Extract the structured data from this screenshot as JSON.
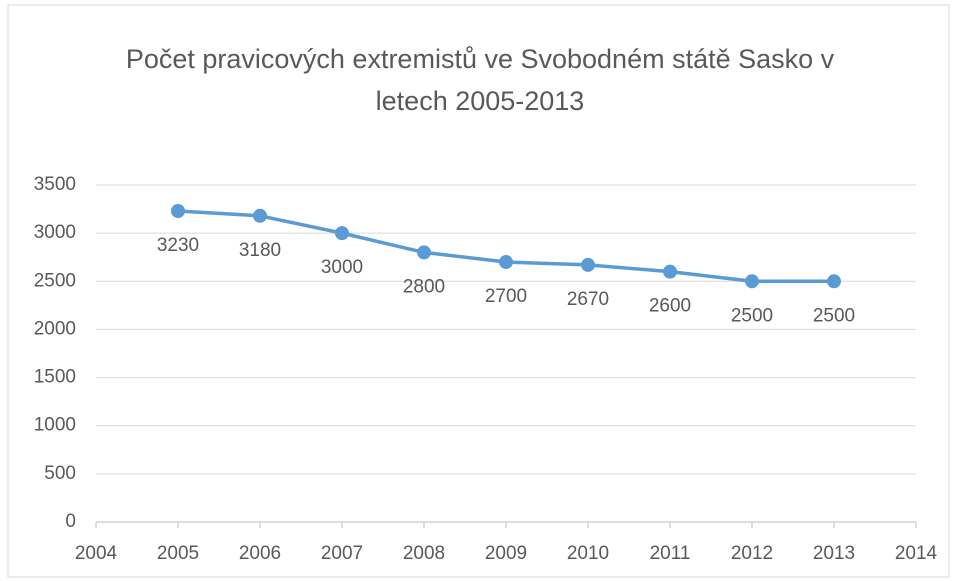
{
  "chart_data": {
    "type": "line",
    "title": "Počet pravicových extremistů ve Svobodném státě Sasko v letech 2005-2013",
    "x": [
      2005,
      2006,
      2007,
      2008,
      2009,
      2010,
      2011,
      2012,
      2013
    ],
    "series": [
      {
        "name": "Počet",
        "color": "#5b9bd5",
        "values": [
          3230,
          3180,
          3000,
          2800,
          2700,
          2670,
          2600,
          2500,
          2500
        ]
      }
    ],
    "xlim": [
      2004,
      2014
    ],
    "xticks": [
      2004,
      2005,
      2006,
      2007,
      2008,
      2009,
      2010,
      2011,
      2012,
      2013,
      2014
    ],
    "ylim": [
      0,
      3500
    ],
    "yticks": [
      0,
      500,
      1000,
      1500,
      2000,
      2500,
      3000,
      3500
    ],
    "grid": true,
    "data_labels": true
  }
}
